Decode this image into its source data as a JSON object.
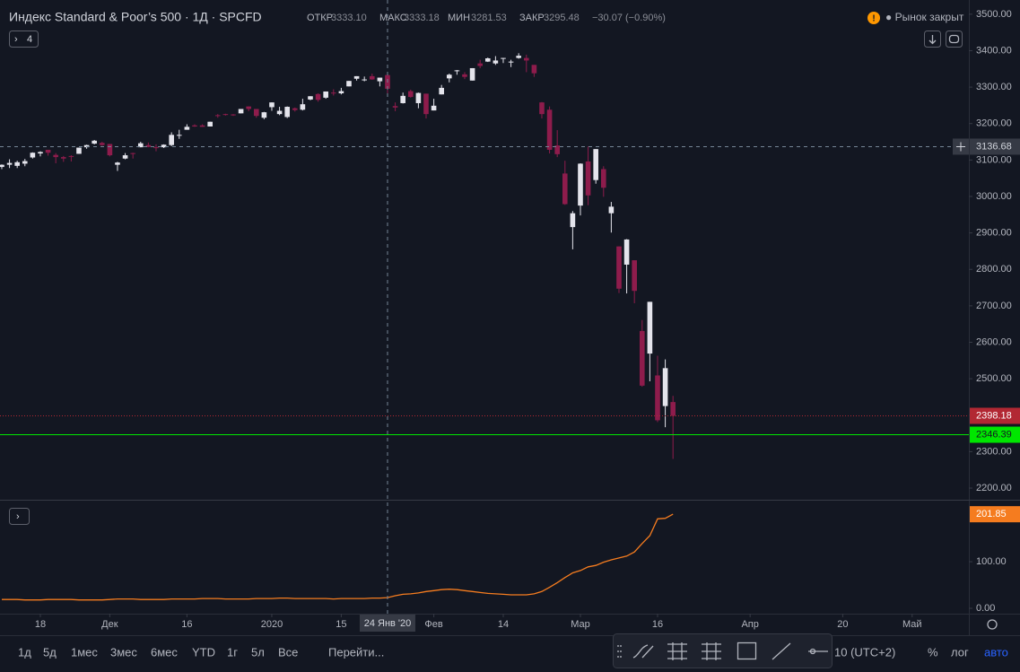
{
  "header": {
    "title": "Индекс Standard & Poor’s 500 · 1Д · SPCFD",
    "ohlc_labels": [
      "ОТКР",
      "МАКС",
      "МИН",
      "ЗАКР"
    ],
    "ohlc_values": [
      "3333.10",
      "3333.18",
      "3281.53",
      "3295.48"
    ],
    "change": "−30.07 (−0.90%)",
    "collapsed_count": 4,
    "market_status": "● Рынок закрыт"
  },
  "chart_data": [
    {
      "type": "candlestick",
      "up_color": "#e4e4ec",
      "down_color": "#8e1c4c",
      "xlim": [
        -0.23,
        125.35
      ],
      "ylim": [
        2168,
        3539
      ],
      "xticks": [
        {
          "value": 5,
          "label": "18"
        },
        {
          "value": 14,
          "label": "Дек"
        },
        {
          "value": 24,
          "label": "16"
        },
        {
          "value": 35,
          "label": "2020"
        },
        {
          "value": 44,
          "label": "15"
        },
        {
          "value": 56,
          "label": "Фев"
        },
        {
          "value": 65,
          "label": "14"
        },
        {
          "value": 75,
          "label": "Мар"
        },
        {
          "value": 85,
          "label": "16"
        },
        {
          "value": 97,
          "label": "Апр"
        },
        {
          "value": 109,
          "label": "20"
        },
        {
          "value": 118,
          "label": "Май"
        }
      ],
      "yticks": [
        {
          "value": 2200,
          "label": "2200.00"
        },
        {
          "value": 2300,
          "label": "2300.00"
        },
        {
          "value": 2400,
          "label": "2400.00"
        },
        {
          "value": 2500,
          "label": "2500.00"
        },
        {
          "value": 2600,
          "label": "2600.00"
        },
        {
          "value": 2700,
          "label": "2700.00"
        },
        {
          "value": 2800,
          "label": "2800.00"
        },
        {
          "value": 2900,
          "label": "2900.00"
        },
        {
          "value": 3000,
          "label": "3000.00"
        },
        {
          "value": 3100,
          "label": "3100.00"
        },
        {
          "value": 3200,
          "label": "3200.00"
        },
        {
          "value": 3300,
          "label": "3300.00"
        },
        {
          "value": 3400,
          "label": "3400.00"
        },
        {
          "value": 3500,
          "label": "3500.00"
        }
      ],
      "open": [
        3081,
        3087,
        3084,
        3090,
        3107,
        3118,
        3128,
        3114,
        3108,
        3111,
        3117,
        3135,
        3145,
        3147,
        3144,
        3087,
        3104,
        3119,
        3135,
        3141,
        3135,
        3135,
        3141,
        3167,
        3183,
        3195,
        3195,
        3192,
        3223,
        3226,
        3225,
        3228,
        3247,
        3240,
        3216,
        3245,
        3226,
        3218,
        3242,
        3238,
        3266,
        3281,
        3271,
        3285,
        3283,
        3302,
        3323,
        3321,
        3330,
        3316,
        3333.1,
        3248,
        3256,
        3289,
        3256,
        3282,
        3236,
        3280,
        3324,
        3344,
        3335,
        3318,
        3365,
        3370,
        3365,
        3378,
        3369,
        3380,
        3380,
        3361,
        3258,
        3238,
        3140,
        3063,
        2916,
        2975,
        3096,
        3045,
        3075,
        2954,
        2863,
        2813,
        2825,
        2631,
        2569,
        2509,
        2425,
        2436
      ],
      "high": [
        3088,
        3102,
        3098,
        3103,
        3121,
        3124,
        3128,
        3119,
        3111,
        3113,
        3134,
        3142,
        3155,
        3150,
        3144,
        3095,
        3119,
        3120,
        3150,
        3148,
        3143,
        3143,
        3176,
        3183,
        3198,
        3198,
        3198,
        3205,
        3226,
        3227,
        3226,
        3240,
        3247,
        3240,
        3232,
        3258,
        3246,
        3247,
        3244,
        3268,
        3275,
        3283,
        3288,
        3294,
        3298,
        3317,
        3330,
        3329,
        3337,
        3326,
        3333.18,
        3258,
        3285,
        3293,
        3285,
        3282,
        3268,
        3306,
        3337,
        3347,
        3341,
        3352,
        3375,
        3381,
        3385,
        3380,
        3375,
        3393,
        3389,
        3361,
        3259,
        3247,
        3182,
        3098,
        2960,
        3091,
        3137,
        3130,
        3083,
        2985,
        2863,
        2883,
        2825,
        2661,
        2711,
        2563,
        2553,
        2453
      ],
      "low": [
        3075,
        3078,
        3078,
        3083,
        3104,
        3110,
        3112,
        3091,
        3095,
        3096,
        3117,
        3131,
        3143,
        3139,
        3110,
        3070,
        3102,
        3104,
        3135,
        3135,
        3124,
        3133,
        3138,
        3158,
        3183,
        3191,
        3191,
        3192,
        3216,
        3222,
        3221,
        3228,
        3234,
        3216,
        3212,
        3235,
        3223,
        3215,
        3233,
        3236,
        3264,
        3260,
        3268,
        3277,
        3280,
        3302,
        3318,
        3316,
        3320,
        3302,
        3281.53,
        3234,
        3255,
        3271,
        3242,
        3214,
        3236,
        3280,
        3313,
        3334,
        3322,
        3318,
        3352,
        3369,
        3361,
        3366,
        3355,
        3378,
        3341,
        3328,
        3214,
        3118,
        3108,
        2977,
        2855,
        2948,
        2976,
        3035,
        2999,
        2901,
        2735,
        2734,
        2707,
        2478,
        2493,
        2381,
        2367,
        2280
      ],
      "close": [
        3087,
        3092,
        3094,
        3097,
        3120,
        3122,
        3120,
        3108,
        3104,
        3110,
        3134,
        3141,
        3153,
        3141,
        3113,
        3093,
        3113,
        3117,
        3146,
        3136,
        3133,
        3142,
        3169,
        3169,
        3191,
        3192,
        3191,
        3205,
        3221,
        3224,
        3223,
        3240,
        3240,
        3221,
        3231,
        3258,
        3235,
        3246,
        3237,
        3253,
        3275,
        3265,
        3288,
        3283,
        3289,
        3317,
        3330,
        3321,
        3321,
        3326,
        3295.48,
        3244,
        3276,
        3273,
        3284,
        3226,
        3249,
        3298,
        3334,
        3346,
        3328,
        3352,
        3358,
        3379,
        3373,
        3380,
        3370,
        3386,
        3373,
        3338,
        3226,
        3128,
        3116,
        2979,
        2954,
        3090,
        3003,
        3130,
        3024,
        2972,
        2747,
        2882,
        2741,
        2481,
        2711,
        2386,
        2529,
        2398.18
      ],
      "last_color": "#b22833",
      "price_lines": [
        {
          "value": 2346.39,
          "color": "#00e600"
        }
      ],
      "crosshair": {
        "x": {
          "value": 50,
          "label": "24 Янв '20"
        },
        "y": 3136.68
      }
    },
    {
      "type": "line",
      "color": "#f57c1f",
      "ylim": [
        -11.5,
        231
      ],
      "yticks": [
        {
          "value": 0,
          "label": "0.00"
        },
        {
          "value": 100,
          "label": "100.00"
        }
      ],
      "values": [
        19,
        19,
        19,
        18,
        18,
        18,
        19,
        19,
        19,
        19,
        18,
        18,
        18,
        18,
        19,
        20,
        20,
        20,
        19,
        19,
        19,
        19,
        20,
        20,
        20,
        20,
        21,
        21,
        21,
        20,
        20,
        20,
        20,
        21,
        21,
        21,
        22,
        22,
        21,
        21,
        21,
        21,
        21,
        20,
        21,
        21,
        21,
        21,
        22,
        22,
        23,
        27,
        30,
        31,
        33,
        36,
        38,
        40,
        41,
        40,
        38,
        36,
        34,
        32,
        31,
        30,
        29,
        29,
        29,
        31,
        36,
        45,
        55,
        66,
        76,
        81,
        89,
        92,
        99,
        104,
        108,
        112,
        121,
        139,
        156,
        192,
        193,
        201.85
      ]
    }
  ],
  "toolbar": {
    "ranges": [
      "1д",
      "5д",
      "1мес",
      "3мес",
      "6мес",
      "YTD",
      "1г",
      "5л",
      "Все"
    ],
    "goto": "Перейти...",
    "timezone": "10 (UTC+2)",
    "percent": "%",
    "log": "лог",
    "auto": "авто"
  }
}
